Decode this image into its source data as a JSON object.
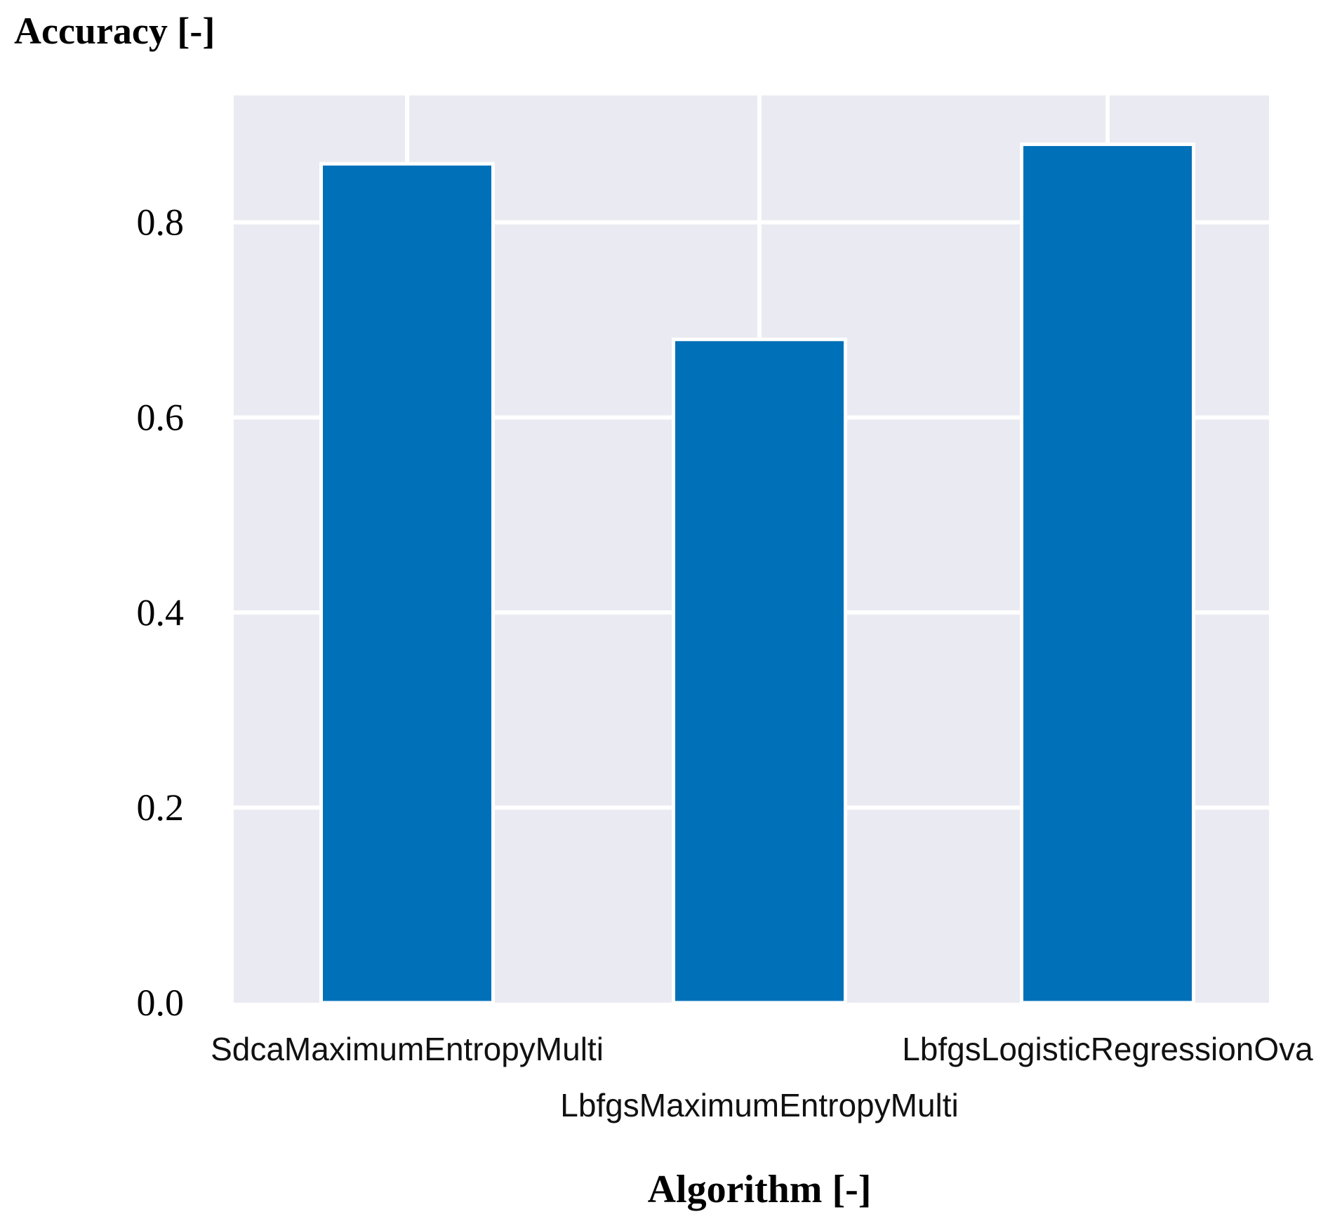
{
  "chart_data": {
    "type": "bar",
    "title": "",
    "xlabel": "Algorithm [-]",
    "ylabel": "Accuracy [-]",
    "categories": [
      "SdcaMaximumEntropyMulti",
      "LbfgsMaximumEntropyMulti",
      "LbfgsLogisticRegressionOva"
    ],
    "values": [
      0.86,
      0.68,
      0.88
    ],
    "ylim": [
      0,
      0.93
    ],
    "yticks": [
      0.0,
      0.2,
      0.4,
      0.6,
      0.8
    ],
    "ytick_labels": [
      "0.0",
      "0.2",
      "0.4",
      "0.6",
      "0.8"
    ],
    "grid": true,
    "legend": "none",
    "bar_color": "#0070b8",
    "background_color": "#eaeaf2",
    "grid_color": "#ffffff"
  }
}
